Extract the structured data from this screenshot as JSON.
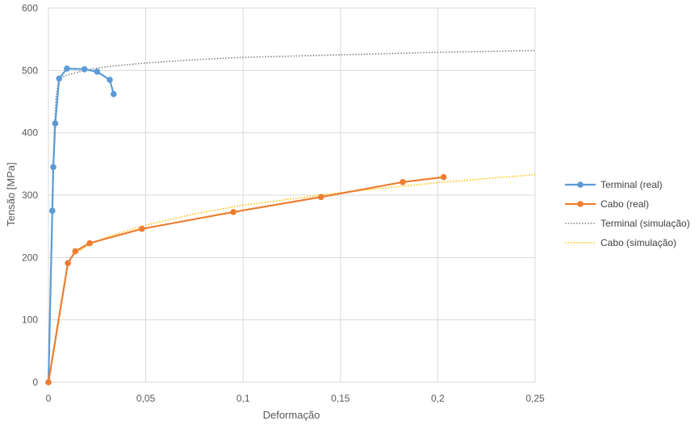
{
  "chart_data": {
    "type": "line",
    "xlabel": "Deformação",
    "ylabel": "Tensão [MPa]",
    "xlim": [
      0,
      0.25
    ],
    "ylim": [
      0,
      600
    ],
    "x_ticks": [
      {
        "value": 0,
        "label": "0"
      },
      {
        "value": 0.05,
        "label": "0,05"
      },
      {
        "value": 0.1,
        "label": "0,1"
      },
      {
        "value": 0.15,
        "label": "0,15"
      },
      {
        "value": 0.2,
        "label": "0,2"
      },
      {
        "value": 0.25,
        "label": "0,25"
      }
    ],
    "y_ticks": [
      {
        "value": 0,
        "label": "0"
      },
      {
        "value": 100,
        "label": "100"
      },
      {
        "value": 200,
        "label": "200"
      },
      {
        "value": 300,
        "label": "300"
      },
      {
        "value": 400,
        "label": "400"
      },
      {
        "value": 500,
        "label": "500"
      },
      {
        "value": 600,
        "label": "600"
      }
    ],
    "grid": true,
    "legend_position": "right",
    "series": [
      {
        "name": "Terminal (real)",
        "color": "#5b9bd5",
        "style": "solid-markers",
        "points": [
          [
            0,
            0
          ],
          [
            0.002,
            275
          ],
          [
            0.0025,
            345
          ],
          [
            0.0035,
            415
          ],
          [
            0.0055,
            487
          ],
          [
            0.0095,
            503
          ],
          [
            0.0185,
            502
          ],
          [
            0.025,
            498
          ],
          [
            0.0315,
            485
          ],
          [
            0.0335,
            462
          ]
        ]
      },
      {
        "name": "Cabo (real)",
        "color": "#ed7d31",
        "style": "solid-markers",
        "points": [
          [
            0,
            0
          ],
          [
            0.01,
            191
          ],
          [
            0.0138,
            210
          ],
          [
            0.0212,
            223
          ],
          [
            0.048,
            246
          ],
          [
            0.095,
            273
          ],
          [
            0.14,
            297
          ],
          [
            0.182,
            321
          ],
          [
            0.203,
            329
          ]
        ]
      },
      {
        "name": "Terminal (simulação)",
        "color": "#808080",
        "style": "dotted",
        "points": [
          [
            0,
            0
          ],
          [
            0.0015,
            200
          ],
          [
            0.003,
            400
          ],
          [
            0.004,
            460
          ],
          [
            0.005,
            480
          ],
          [
            0.007,
            489
          ],
          [
            0.01,
            493
          ],
          [
            0.015,
            497
          ],
          [
            0.02,
            501
          ],
          [
            0.03,
            506
          ],
          [
            0.05,
            512
          ],
          [
            0.08,
            518
          ],
          [
            0.1,
            521
          ],
          [
            0.15,
            525
          ],
          [
            0.2,
            529
          ],
          [
            0.25,
            532
          ]
        ]
      },
      {
        "name": "Cabo (simulação)",
        "color": "#ffc000",
        "style": "dotted",
        "points": [
          [
            0,
            0
          ],
          [
            0.005,
            100
          ],
          [
            0.01,
            190
          ],
          [
            0.013,
            205
          ],
          [
            0.02,
            219
          ],
          [
            0.03,
            233
          ],
          [
            0.05,
            252
          ],
          [
            0.075,
            270
          ],
          [
            0.1,
            284
          ],
          [
            0.15,
            304
          ],
          [
            0.2,
            320
          ],
          [
            0.25,
            333
          ]
        ]
      }
    ]
  }
}
